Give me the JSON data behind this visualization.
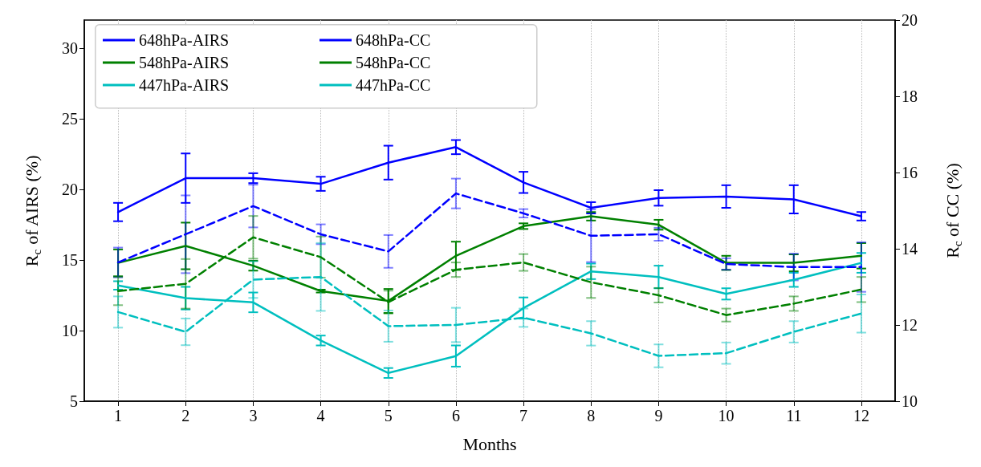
{
  "chart_data": {
    "type": "line",
    "xlabel": "Months",
    "ylabel": "R$_{c}$ of AIRS (%)",
    "y2label": "R$_{c}$ of CC (%)",
    "x": [
      1,
      2,
      3,
      4,
      5,
      6,
      7,
      8,
      9,
      10,
      11,
      12
    ],
    "xlim": [
      0.5,
      12.5
    ],
    "xticks": [
      1,
      2,
      3,
      4,
      5,
      6,
      7,
      8,
      9,
      10,
      11,
      12
    ],
    "ylim": [
      5,
      32
    ],
    "yticks": [
      5,
      10,
      15,
      20,
      25,
      30
    ],
    "y2lim": [
      10,
      20
    ],
    "y2ticks": [
      10,
      12,
      14,
      16,
      18,
      20
    ],
    "grid": "x",
    "legend": "top left",
    "marker": "none",
    "series": [
      {
        "name": "648hPa-AIRS",
        "color": "#0000ff",
        "line_style": "solid",
        "values": [
          18.4,
          20.8,
          20.8,
          20.4,
          21.9,
          23.0,
          20.5,
          18.7,
          19.4,
          19.5,
          19.3,
          18.1
        ],
        "errors": [
          0.65,
          1.75,
          0.35,
          0.5,
          1.2,
          0.5,
          0.75,
          0.4,
          0.55,
          0.8,
          1.0,
          0.3
        ]
      },
      {
        "name": "548hPa-AIRS",
        "color": "#008000",
        "line_style": "solid",
        "values": [
          14.8,
          16.0,
          14.6,
          12.8,
          12.1,
          15.3,
          17.4,
          18.1,
          17.5,
          14.8,
          14.8,
          15.3
        ],
        "errors": [
          0.95,
          1.65,
          0.35,
          0.1,
          0.85,
          1.0,
          0.2,
          0.3,
          0.35,
          0.5,
          0.6,
          0.9
        ]
      },
      {
        "name": "447hPa-AIRS",
        "color": "#00bfbf",
        "line_style": "solid",
        "values": [
          13.2,
          12.3,
          12.0,
          9.3,
          7.0,
          8.2,
          11.6,
          14.2,
          13.8,
          12.6,
          13.6,
          14.8
        ],
        "errors": [
          0.3,
          0.8,
          0.7,
          0.35,
          0.35,
          0.75,
          0.75,
          0.55,
          0.8,
          0.4,
          0.5,
          0.7
        ]
      },
      {
        "name": "648hPa-CC",
        "color": "#0000ff",
        "line_style": "dashed",
        "axis": "y2",
        "values": [
          13.64,
          14.38,
          15.12,
          14.38,
          13.93,
          15.45,
          14.93,
          14.34,
          14.38,
          13.6,
          13.52,
          13.52
        ],
        "errors": [
          0.39,
          1.02,
          0.56,
          0.26,
          0.43,
          0.39,
          0.11,
          0.69,
          0.17,
          0.15,
          0.35,
          0.65
        ]
      },
      {
        "name": "548hPa-CC",
        "color": "#008000",
        "line_style": "dashed",
        "axis": "y2",
        "values": [
          12.89,
          13.08,
          14.3,
          13.78,
          12.6,
          13.45,
          13.64,
          13.12,
          12.78,
          12.26,
          12.56,
          12.93
        ],
        "errors": [
          0.37,
          0.65,
          0.56,
          0.54,
          0.3,
          0.19,
          0.22,
          0.41,
          0.19,
          0.17,
          0.19,
          0.33
        ]
      },
      {
        "name": "447hPa-CC",
        "color": "#00bfbf",
        "line_style": "dashed",
        "axis": "y2",
        "values": [
          12.34,
          11.82,
          13.19,
          13.26,
          11.97,
          12.0,
          12.19,
          11.78,
          11.19,
          11.26,
          11.82,
          12.3
        ],
        "errors": [
          0.41,
          0.35,
          0.48,
          0.89,
          0.41,
          0.45,
          0.24,
          0.32,
          0.3,
          0.28,
          0.28,
          0.5
        ]
      }
    ]
  }
}
